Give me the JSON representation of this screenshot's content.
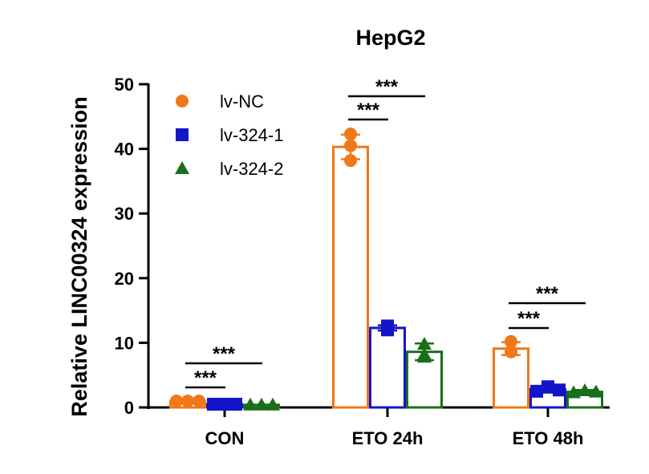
{
  "chart_data": {
    "type": "bar",
    "title": "HepG2",
    "xlabel": "",
    "ylabel": "Relative LINC00324 expression",
    "ylim": [
      0,
      50
    ],
    "yticks": [
      0,
      10,
      20,
      30,
      40,
      50
    ],
    "grid": false,
    "legend_position": "top-left",
    "categories": [
      "CON",
      "ETO 24h",
      "ETO 48h"
    ],
    "series": [
      {
        "name": "lv-NC",
        "color": "#f07818",
        "marker": "circle",
        "values": [
          1.0,
          40.3,
          9.1
        ],
        "errors": [
          0.1,
          1.9,
          1.0
        ],
        "points": [
          [
            1.0,
            1.0,
            1.0
          ],
          [
            42.3,
            40.5,
            38.2
          ],
          [
            10.2,
            8.6,
            8.7
          ]
        ]
      },
      {
        "name": "lv-324-1",
        "color": "#1414c8",
        "marker": "square",
        "values": [
          0.5,
          12.3,
          2.8
        ],
        "errors": [
          0.05,
          0.4,
          0.5
        ],
        "points": [
          [
            0.5,
            0.5,
            0.5
          ],
          [
            12.0,
            12.6,
            12.3
          ],
          [
            2.5,
            3.2,
            2.7
          ]
        ]
      },
      {
        "name": "lv-324-2",
        "color": "#1a6e1a",
        "marker": "triangle",
        "values": [
          0.4,
          8.6,
          2.4
        ],
        "errors": [
          0.05,
          1.3,
          0.3
        ],
        "points": [
          [
            0.4,
            0.4,
            0.4
          ],
          [
            9.8,
            8.2,
            7.8
          ],
          [
            2.3,
            2.6,
            2.4
          ]
        ]
      }
    ],
    "significance": [
      {
        "category": 0,
        "from": 0,
        "to": 1,
        "label": "***"
      },
      {
        "category": 0,
        "from": 0,
        "to": 2,
        "label": "***"
      },
      {
        "category": 1,
        "from": 0,
        "to": 1,
        "label": "***"
      },
      {
        "category": 1,
        "from": 0,
        "to": 2,
        "label": "***"
      },
      {
        "category": 2,
        "from": 0,
        "to": 1,
        "label": "***"
      },
      {
        "category": 2,
        "from": 0,
        "to": 2,
        "label": "***"
      }
    ]
  }
}
